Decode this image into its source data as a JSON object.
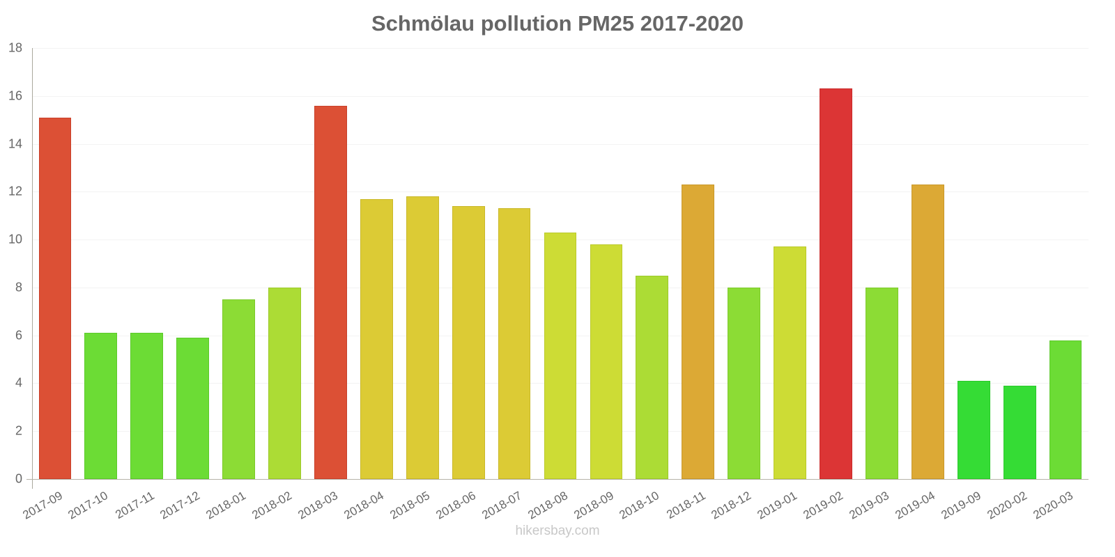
{
  "title": "Schmölau pollution PM25 2017-2020",
  "footer": "hikersbay.com",
  "chart_data": {
    "type": "bar",
    "title": "Schmölau pollution PM25 2017-2020",
    "xlabel": "",
    "ylabel": "",
    "ylim": [
      0,
      18
    ],
    "yticks": [
      0,
      2,
      4,
      6,
      8,
      10,
      12,
      14,
      16,
      18
    ],
    "grid": true,
    "legend": null,
    "categories": [
      "2017-09",
      "2017-10",
      "2017-11",
      "2017-12",
      "2018-01",
      "2018-02",
      "2018-03",
      "2018-04",
      "2018-05",
      "2018-06",
      "2018-07",
      "2018-08",
      "2018-09",
      "2018-10",
      "2018-11",
      "2018-12",
      "2019-01",
      "2019-02",
      "2019-03",
      "2019-04",
      "2019-09",
      "2020-02",
      "2020-03"
    ],
    "values": [
      15.1,
      6.1,
      6.1,
      5.9,
      7.5,
      8.0,
      15.6,
      11.7,
      11.8,
      11.4,
      11.3,
      10.3,
      9.8,
      8.5,
      12.3,
      8.0,
      9.7,
      16.3,
      8.0,
      12.3,
      4.1,
      3.9,
      5.8
    ],
    "colors": [
      "#dc5035",
      "#6cdc35",
      "#6cdc35",
      "#6cdc35",
      "#8cdc35",
      "#acdc35",
      "#dc5035",
      "#dccb35",
      "#dccb35",
      "#dccb35",
      "#dccb35",
      "#cddc35",
      "#cddc35",
      "#acdc35",
      "#dca935",
      "#8cdc35",
      "#cddc35",
      "#dc3535",
      "#8cdc35",
      "#dca935",
      "#35dc35",
      "#35dc35",
      "#6cdc35"
    ],
    "borders": [
      "#c9402a",
      "#5cc92a",
      "#5cc92a",
      "#5cc92a",
      "#7cc92a",
      "#9cc92a",
      "#c9402a",
      "#c9b82a",
      "#c9b82a",
      "#c9b82a",
      "#c9b82a",
      "#bac92a",
      "#bac92a",
      "#9cc92a",
      "#c9982a",
      "#7cc92a",
      "#bac92a",
      "#c92a2a",
      "#7cc92a",
      "#c9982a",
      "#2ac92a",
      "#2ac92a",
      "#5cc92a"
    ]
  }
}
